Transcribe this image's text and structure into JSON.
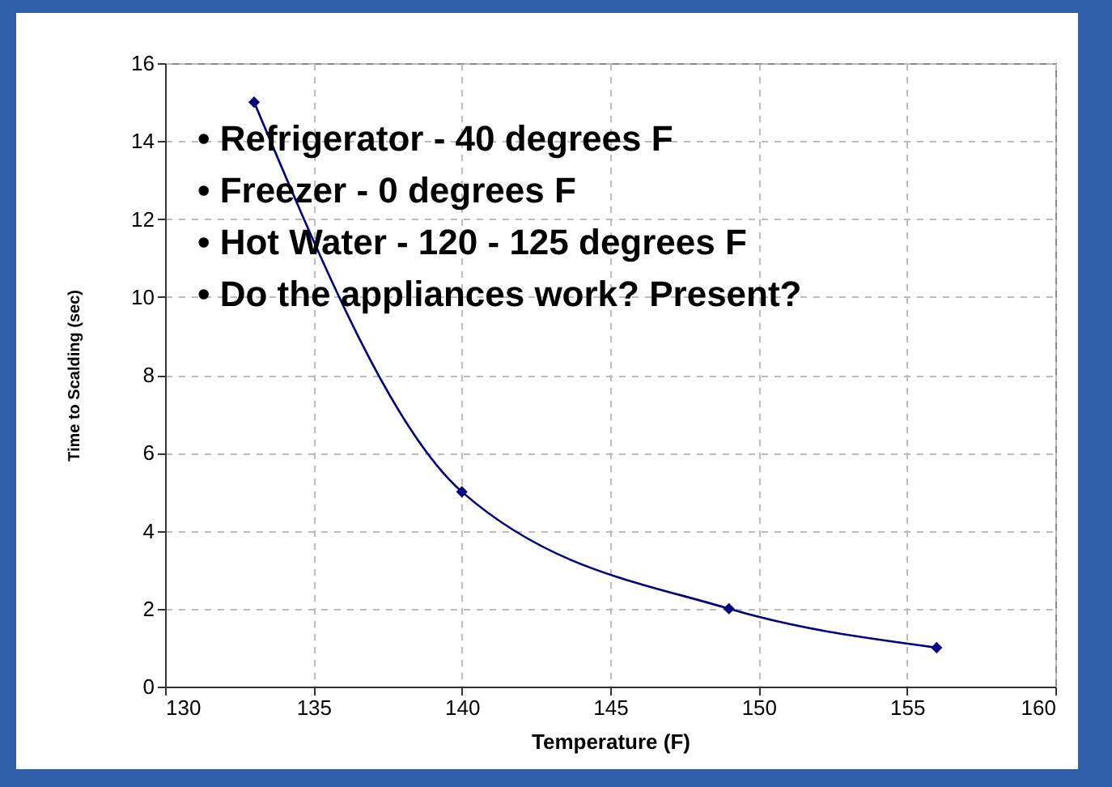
{
  "chart_data": {
    "type": "line",
    "xlabel": "Temperature (F)",
    "ylabel": "Time to Scalding (sec)",
    "x": [
      133,
      140,
      149,
      156
    ],
    "series": [
      {
        "color": "#000080",
        "values": [
          15,
          5,
          2,
          1
        ]
      }
    ],
    "xlim": [
      130,
      160
    ],
    "xticks": [
      130,
      135,
      140,
      145,
      150,
      155,
      160
    ],
    "ylim": [
      0,
      16
    ],
    "yticks": [
      0,
      2,
      4,
      6,
      8,
      10,
      12,
      14,
      16
    ],
    "grid": true,
    "marker": "diamond",
    "line_style": "solid",
    "annotations": [
      "• Refrigerator - 40 degrees F",
      "• Freezer  -  0 degrees F",
      "• Hot Water -  120  - 125 degrees F",
      "• Do the appliances work? Present?"
    ]
  }
}
